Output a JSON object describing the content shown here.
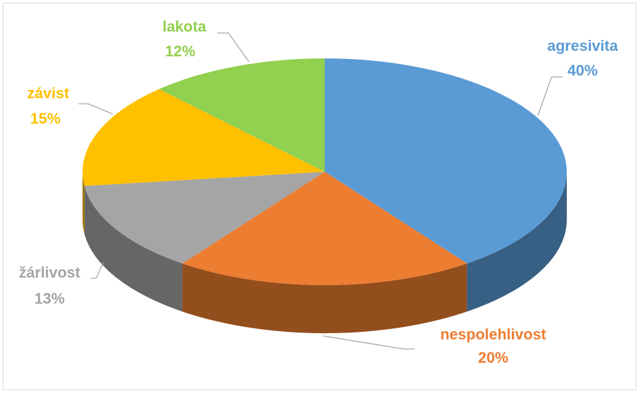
{
  "chart_data": {
    "type": "pie3d",
    "categories": [
      "agresivita",
      "nespolehlivost",
      "žárlivost",
      "závist",
      "lakota"
    ],
    "values": [
      40,
      20,
      13,
      15,
      12
    ],
    "value_labels": [
      "40%",
      "20%",
      "13%",
      "15%",
      "12%"
    ],
    "colors": [
      "#5b9bd5",
      "#ed7d31",
      "#a5a5a5",
      "#ffc000",
      "#92d050"
    ]
  }
}
